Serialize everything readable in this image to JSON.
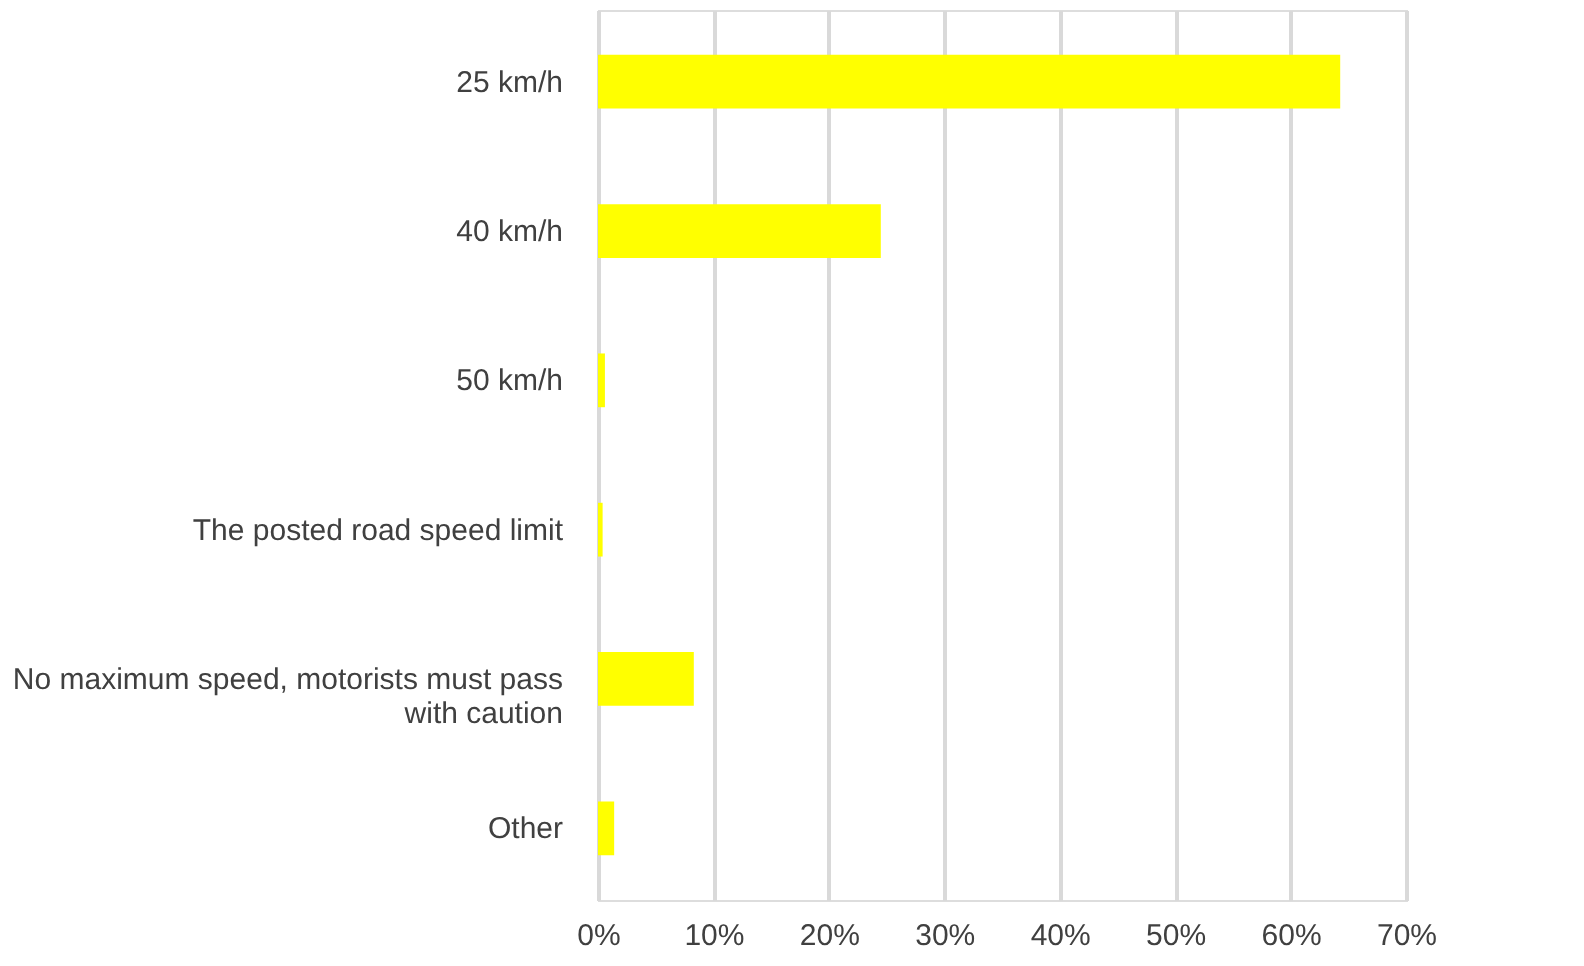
{
  "chart_data": {
    "type": "bar",
    "orientation": "horizontal",
    "categories": [
      "25 km/h",
      "40 km/h",
      "50 km/h",
      "The posted road speed limit",
      "No maximum speed, motorists must pass\nwith caution",
      "Other"
    ],
    "values": [
      64.3,
      24.5,
      0.6,
      0.4,
      8.3,
      1.4
    ],
    "color": "#ffff00",
    "xlim": [
      0,
      70
    ],
    "xticks": [
      {
        "value": 0,
        "label": "0%"
      },
      {
        "value": 10,
        "label": "10%"
      },
      {
        "value": 20,
        "label": "20%"
      },
      {
        "value": 30,
        "label": "30%"
      },
      {
        "value": 40,
        "label": "40%"
      },
      {
        "value": 50,
        "label": "50%"
      },
      {
        "value": 60,
        "label": "60%"
      },
      {
        "value": 70,
        "label": "70%"
      }
    ],
    "grid": "x"
  }
}
